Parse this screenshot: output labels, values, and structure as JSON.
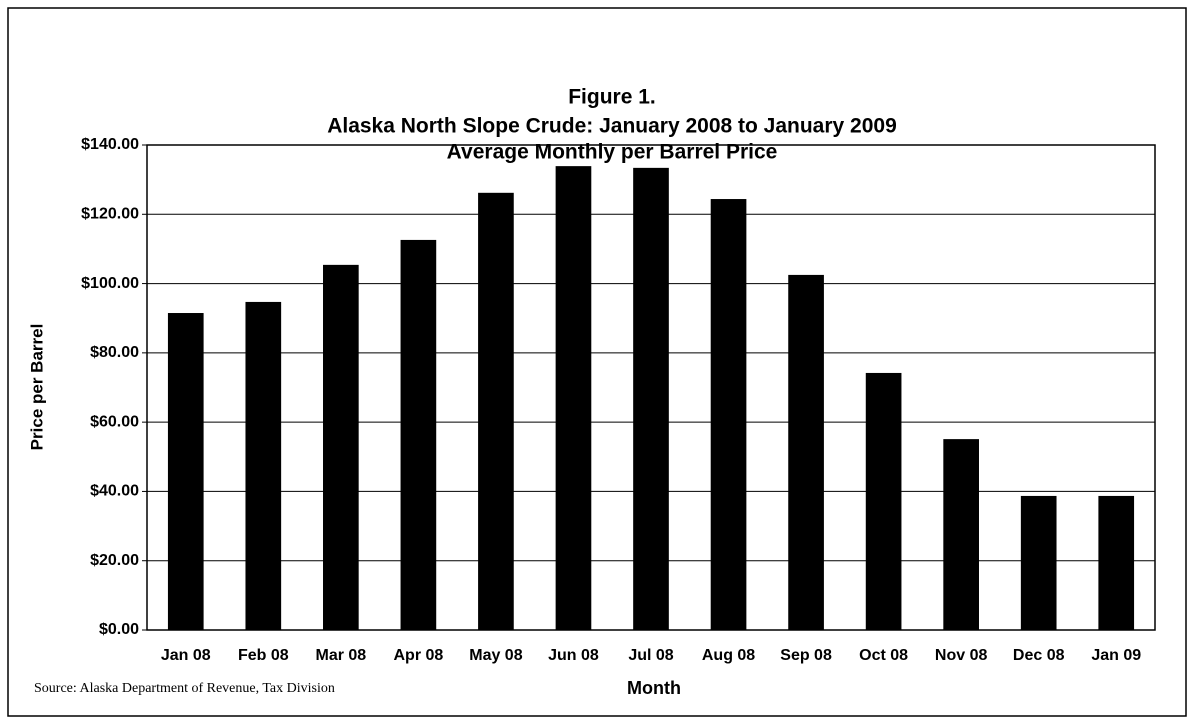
{
  "chart_data": {
    "type": "bar",
    "title": "Figure 1.",
    "subtitle": [
      "Alaska North Slope Crude: January 2008 to January 2009",
      "Average Monthly per Barrel Price"
    ],
    "x_label": "Month",
    "y_label": "Price per Barrel",
    "source": "Source: Alaska Department of Revenue, Tax Division",
    "categories": [
      "Jan 08",
      "Feb 08",
      "Mar 08",
      "Apr 08",
      "May 08",
      "Jun 08",
      "Jul 08",
      "Aug 08",
      "Sep 08",
      "Oct 08",
      "Nov 08",
      "Dec 08",
      "Jan 09"
    ],
    "values": [
      91.5,
      94.7,
      105.4,
      112.6,
      126.2,
      133.9,
      133.4,
      124.4,
      102.5,
      74.2,
      55.1,
      38.7,
      38.7
    ],
    "color": "#000000",
    "ylim": [
      0,
      140
    ],
    "yticks": [
      {
        "value": 0,
        "label": "$0.00"
      },
      {
        "value": 20,
        "label": "$20.00"
      },
      {
        "value": 40,
        "label": "$40.00"
      },
      {
        "value": 60,
        "label": "$60.00"
      },
      {
        "value": 80,
        "label": "$80.00"
      },
      {
        "value": 100,
        "label": "$100.00"
      },
      {
        "value": 120,
        "label": "$120.00"
      },
      {
        "value": 140,
        "label": "$140.00"
      }
    ],
    "grid": true
  }
}
